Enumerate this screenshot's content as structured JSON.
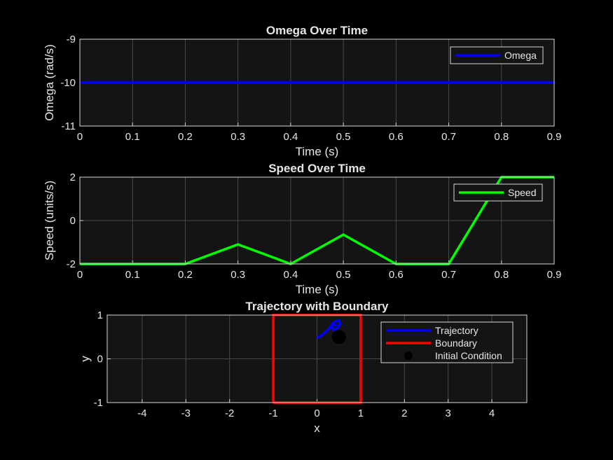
{
  "chart_data": [
    {
      "type": "line",
      "title": "Omega Over Time",
      "xlabel": "Time (s)",
      "ylabel": "Omega (rad/s)",
      "xlim": [
        0,
        0.9
      ],
      "ylim": [
        -11,
        -9
      ],
      "xticks": [
        "0",
        "0.1",
        "0.2",
        "0.3",
        "0.4",
        "0.5",
        "0.6",
        "0.7",
        "0.8",
        "0.9"
      ],
      "yticks": [
        "-11",
        "-10",
        "-9"
      ],
      "grid": true,
      "legend": "top-right",
      "series": [
        {
          "name": "Omega",
          "color": "#0000ff",
          "x": [
            0,
            0.1,
            0.2,
            0.3,
            0.4,
            0.5,
            0.6,
            0.7,
            0.8,
            0.9
          ],
          "y": [
            -10,
            -10,
            -10,
            -10,
            -10,
            -10,
            -10,
            -10,
            -10,
            -10
          ]
        }
      ]
    },
    {
      "type": "line",
      "title": "Speed Over Time",
      "xlabel": "Time (s)",
      "ylabel": "Speed (units/s)",
      "xlim": [
        0,
        0.9
      ],
      "ylim": [
        -2,
        2
      ],
      "xticks": [
        "0",
        "0.1",
        "0.2",
        "0.3",
        "0.4",
        "0.5",
        "0.6",
        "0.7",
        "0.8",
        "0.9"
      ],
      "yticks": [
        "-2",
        "0",
        "2"
      ],
      "grid": true,
      "legend": "top-right",
      "series": [
        {
          "name": "Speed",
          "color": "#00ff00",
          "x": [
            0,
            0.1,
            0.2,
            0.3,
            0.4,
            0.5,
            0.6,
            0.7,
            0.8,
            0.9
          ],
          "y": [
            -2,
            -2,
            -2,
            -1.1,
            -2,
            -0.65,
            -2,
            -2,
            2,
            2
          ]
        }
      ]
    },
    {
      "type": "line",
      "title": "Trajectory with Boundary",
      "xlabel": "x",
      "ylabel": "y",
      "xlim": [
        -4.8,
        4.8
      ],
      "ylim": [
        -1,
        1
      ],
      "xticks": [
        "-4",
        "-3",
        "-2",
        "-1",
        "0",
        "1",
        "2",
        "3",
        "4"
      ],
      "yticks": [
        "-1",
        "0",
        "1"
      ],
      "grid": true,
      "legend": "top-right",
      "series": [
        {
          "name": "Trajectory",
          "color": "#0000ff",
          "x": [
            0.0,
            0.12,
            0.22,
            0.3,
            0.33,
            0.35,
            0.42,
            0.5,
            0.53,
            0.47,
            0.38,
            0.33,
            0.36,
            0.45
          ],
          "y": [
            0.47,
            0.55,
            0.63,
            0.72,
            0.78,
            0.8,
            0.86,
            0.87,
            0.8,
            0.7,
            0.66,
            0.72,
            0.8,
            0.75
          ]
        },
        {
          "name": "Boundary",
          "color": "#ff0000",
          "x": [
            -1,
            1,
            1,
            -1,
            -1
          ],
          "y": [
            -1,
            -1,
            1,
            1,
            -1
          ]
        },
        {
          "name": "Initial Condition",
          "color": "#000000",
          "marker": "circle",
          "x": [
            0.5
          ],
          "y": [
            0.5
          ]
        }
      ]
    }
  ]
}
